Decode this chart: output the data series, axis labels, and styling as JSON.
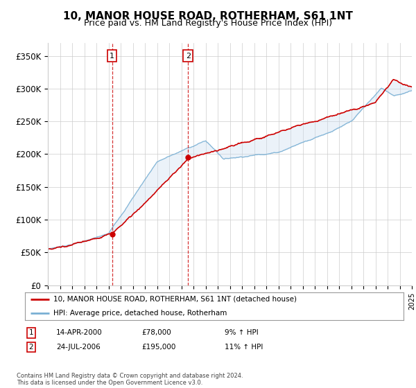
{
  "title": "10, MANOR HOUSE ROAD, ROTHERHAM, S61 1NT",
  "subtitle": "Price paid vs. HM Land Registry's House Price Index (HPI)",
  "title_fontsize": 11,
  "subtitle_fontsize": 9,
  "ylim": [
    0,
    370000
  ],
  "yticks": [
    0,
    50000,
    100000,
    150000,
    200000,
    250000,
    300000,
    350000
  ],
  "ytick_labels": [
    "£0",
    "£50K",
    "£100K",
    "£150K",
    "£200K",
    "£250K",
    "£300K",
    "£350K"
  ],
  "x_start_year": 1995,
  "x_end_year": 2025,
  "hpi_color": "#7ab0d4",
  "price_color": "#cc0000",
  "background_color": "#ffffff",
  "grid_color": "#cccccc",
  "transaction1_date": "14-APR-2000",
  "transaction1_price": 78000,
  "transaction1_hpi": "9% ↑ HPI",
  "transaction1_year": 2000.29,
  "transaction2_date": "24-JUL-2006",
  "transaction2_price": 195000,
  "transaction2_hpi": "11% ↑ HPI",
  "transaction2_year": 2006.56,
  "legend_label1": "10, MANOR HOUSE ROAD, ROTHERHAM, S61 1NT (detached house)",
  "legend_label2": "HPI: Average price, detached house, Rotherham",
  "footer": "Contains HM Land Registry data © Crown copyright and database right 2024.\nThis data is licensed under the Open Government Licence v3.0.",
  "shaded_color": "#c8dcf0",
  "annotation_box_edge": "#cc0000"
}
